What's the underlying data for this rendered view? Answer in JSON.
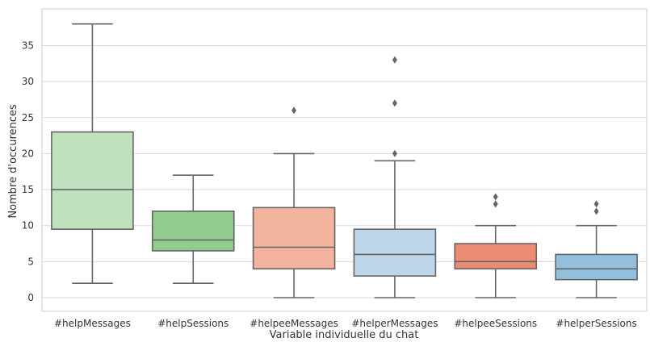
{
  "chart_data": {
    "type": "boxplot",
    "title": "",
    "xlabel": "Variable individuelle du chat",
    "ylabel": "Nombre d'occurences",
    "ylim": [
      -2,
      40
    ],
    "yticks": [
      0,
      5,
      10,
      15,
      20,
      25,
      30,
      35
    ],
    "grid": "horizontal",
    "categories": [
      "#helpMessages",
      "#helpSessions",
      "#helpeeMessages",
      "#helperMessages",
      "#helpeeSessions",
      "#helperSessions"
    ],
    "boxes": [
      {
        "category": "#helpMessages",
        "whisker_low": 2,
        "q1": 9.5,
        "median": 15,
        "q3": 23,
        "whisker_high": 38,
        "outliers": [],
        "color": "#c0e1bd"
      },
      {
        "category": "#helpSessions",
        "whisker_low": 2,
        "q1": 6.5,
        "median": 8,
        "q3": 12,
        "whisker_high": 17,
        "outliers": [],
        "color": "#93cb8f"
      },
      {
        "category": "#helpeeMessages",
        "whisker_low": 0,
        "q1": 4,
        "median": 7,
        "q3": 12.5,
        "whisker_high": 20,
        "outliers": [
          26
        ],
        "color": "#f3b39e"
      },
      {
        "category": "#helperMessages",
        "whisker_low": 0,
        "q1": 3,
        "median": 6,
        "q3": 9.5,
        "whisker_high": 19,
        "outliers": [
          20,
          27,
          33
        ],
        "color": "#bdd6ea"
      },
      {
        "category": "#helpeeSessions",
        "whisker_low": 0,
        "q1": 4,
        "median": 5,
        "q3": 7.5,
        "whisker_high": 10,
        "outliers": [
          13,
          14
        ],
        "color": "#ec8c72"
      },
      {
        "category": "#helperSessions",
        "whisker_low": 0,
        "q1": 2.5,
        "median": 4,
        "q3": 6,
        "whisker_high": 10,
        "outliers": [
          12,
          13
        ],
        "color": "#92bfdc"
      }
    ],
    "line_color": "#656565",
    "grid_color": "#d9d9d9",
    "spine_color": "#cccccc"
  }
}
